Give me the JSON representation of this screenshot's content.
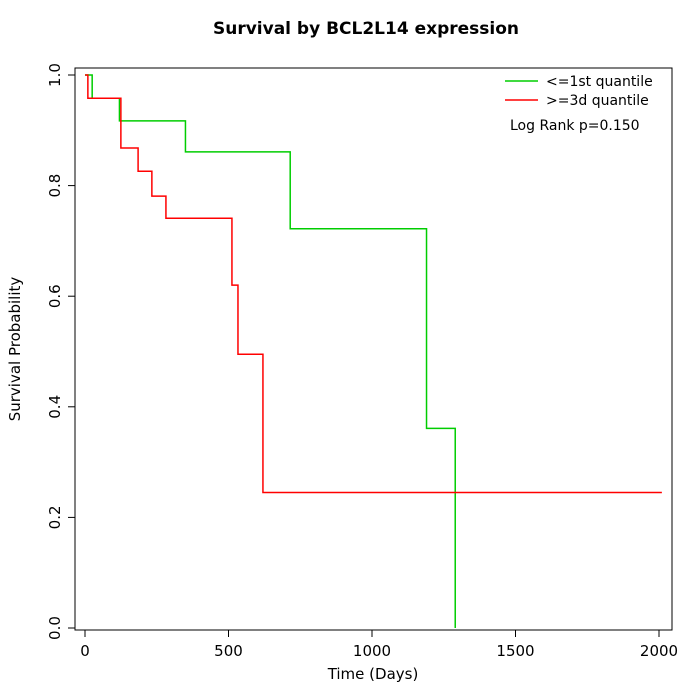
{
  "chart_data": {
    "type": "line",
    "subtype": "kaplan-meier-step-curve",
    "title": "Survival by BCL2L14 expression",
    "xlabel": "Time (Days)",
    "ylabel": "Survival Probability",
    "xlim": [
      0,
      2100
    ],
    "ylim": [
      0.0,
      1.0
    ],
    "grid": false,
    "legend_position": "top-right",
    "x_ticks": {
      "values": [
        0,
        500,
        1000,
        1500,
        2000
      ],
      "labels": [
        "0",
        "500",
        "1000",
        "1500",
        "2000"
      ]
    },
    "y_ticks": {
      "values": [
        0.0,
        0.2,
        0.4,
        0.6,
        0.8,
        1.0
      ],
      "labels": [
        "0.0",
        "0.2",
        "0.4",
        "0.6",
        "0.8",
        "1.0"
      ]
    },
    "legend": [
      {
        "label": "<=1st quantile",
        "color": "#00cd00"
      },
      {
        "label": ">=3d quantile",
        "color": "#ff0000"
      }
    ],
    "annotation": "Log Rank p=0.150",
    "series": [
      {
        "name": "<=1st quantile",
        "color": "#00cd00",
        "steps": [
          [
            0,
            1.0
          ],
          [
            25,
            0.958
          ],
          [
            120,
            0.917
          ],
          [
            350,
            0.861
          ],
          [
            715,
            0.722
          ],
          [
            1190,
            0.361
          ],
          [
            1290,
            0.0
          ]
        ]
      },
      {
        "name": ">=3d quantile",
        "color": "#ff0000",
        "steps": [
          [
            0,
            1.0
          ],
          [
            10,
            0.958
          ],
          [
            125,
            0.868
          ],
          [
            185,
            0.826
          ],
          [
            233,
            0.781
          ],
          [
            282,
            0.741
          ],
          [
            512,
            0.62
          ],
          [
            533,
            0.495
          ],
          [
            620,
            0.245
          ],
          [
            2010,
            0.245
          ]
        ]
      }
    ]
  }
}
